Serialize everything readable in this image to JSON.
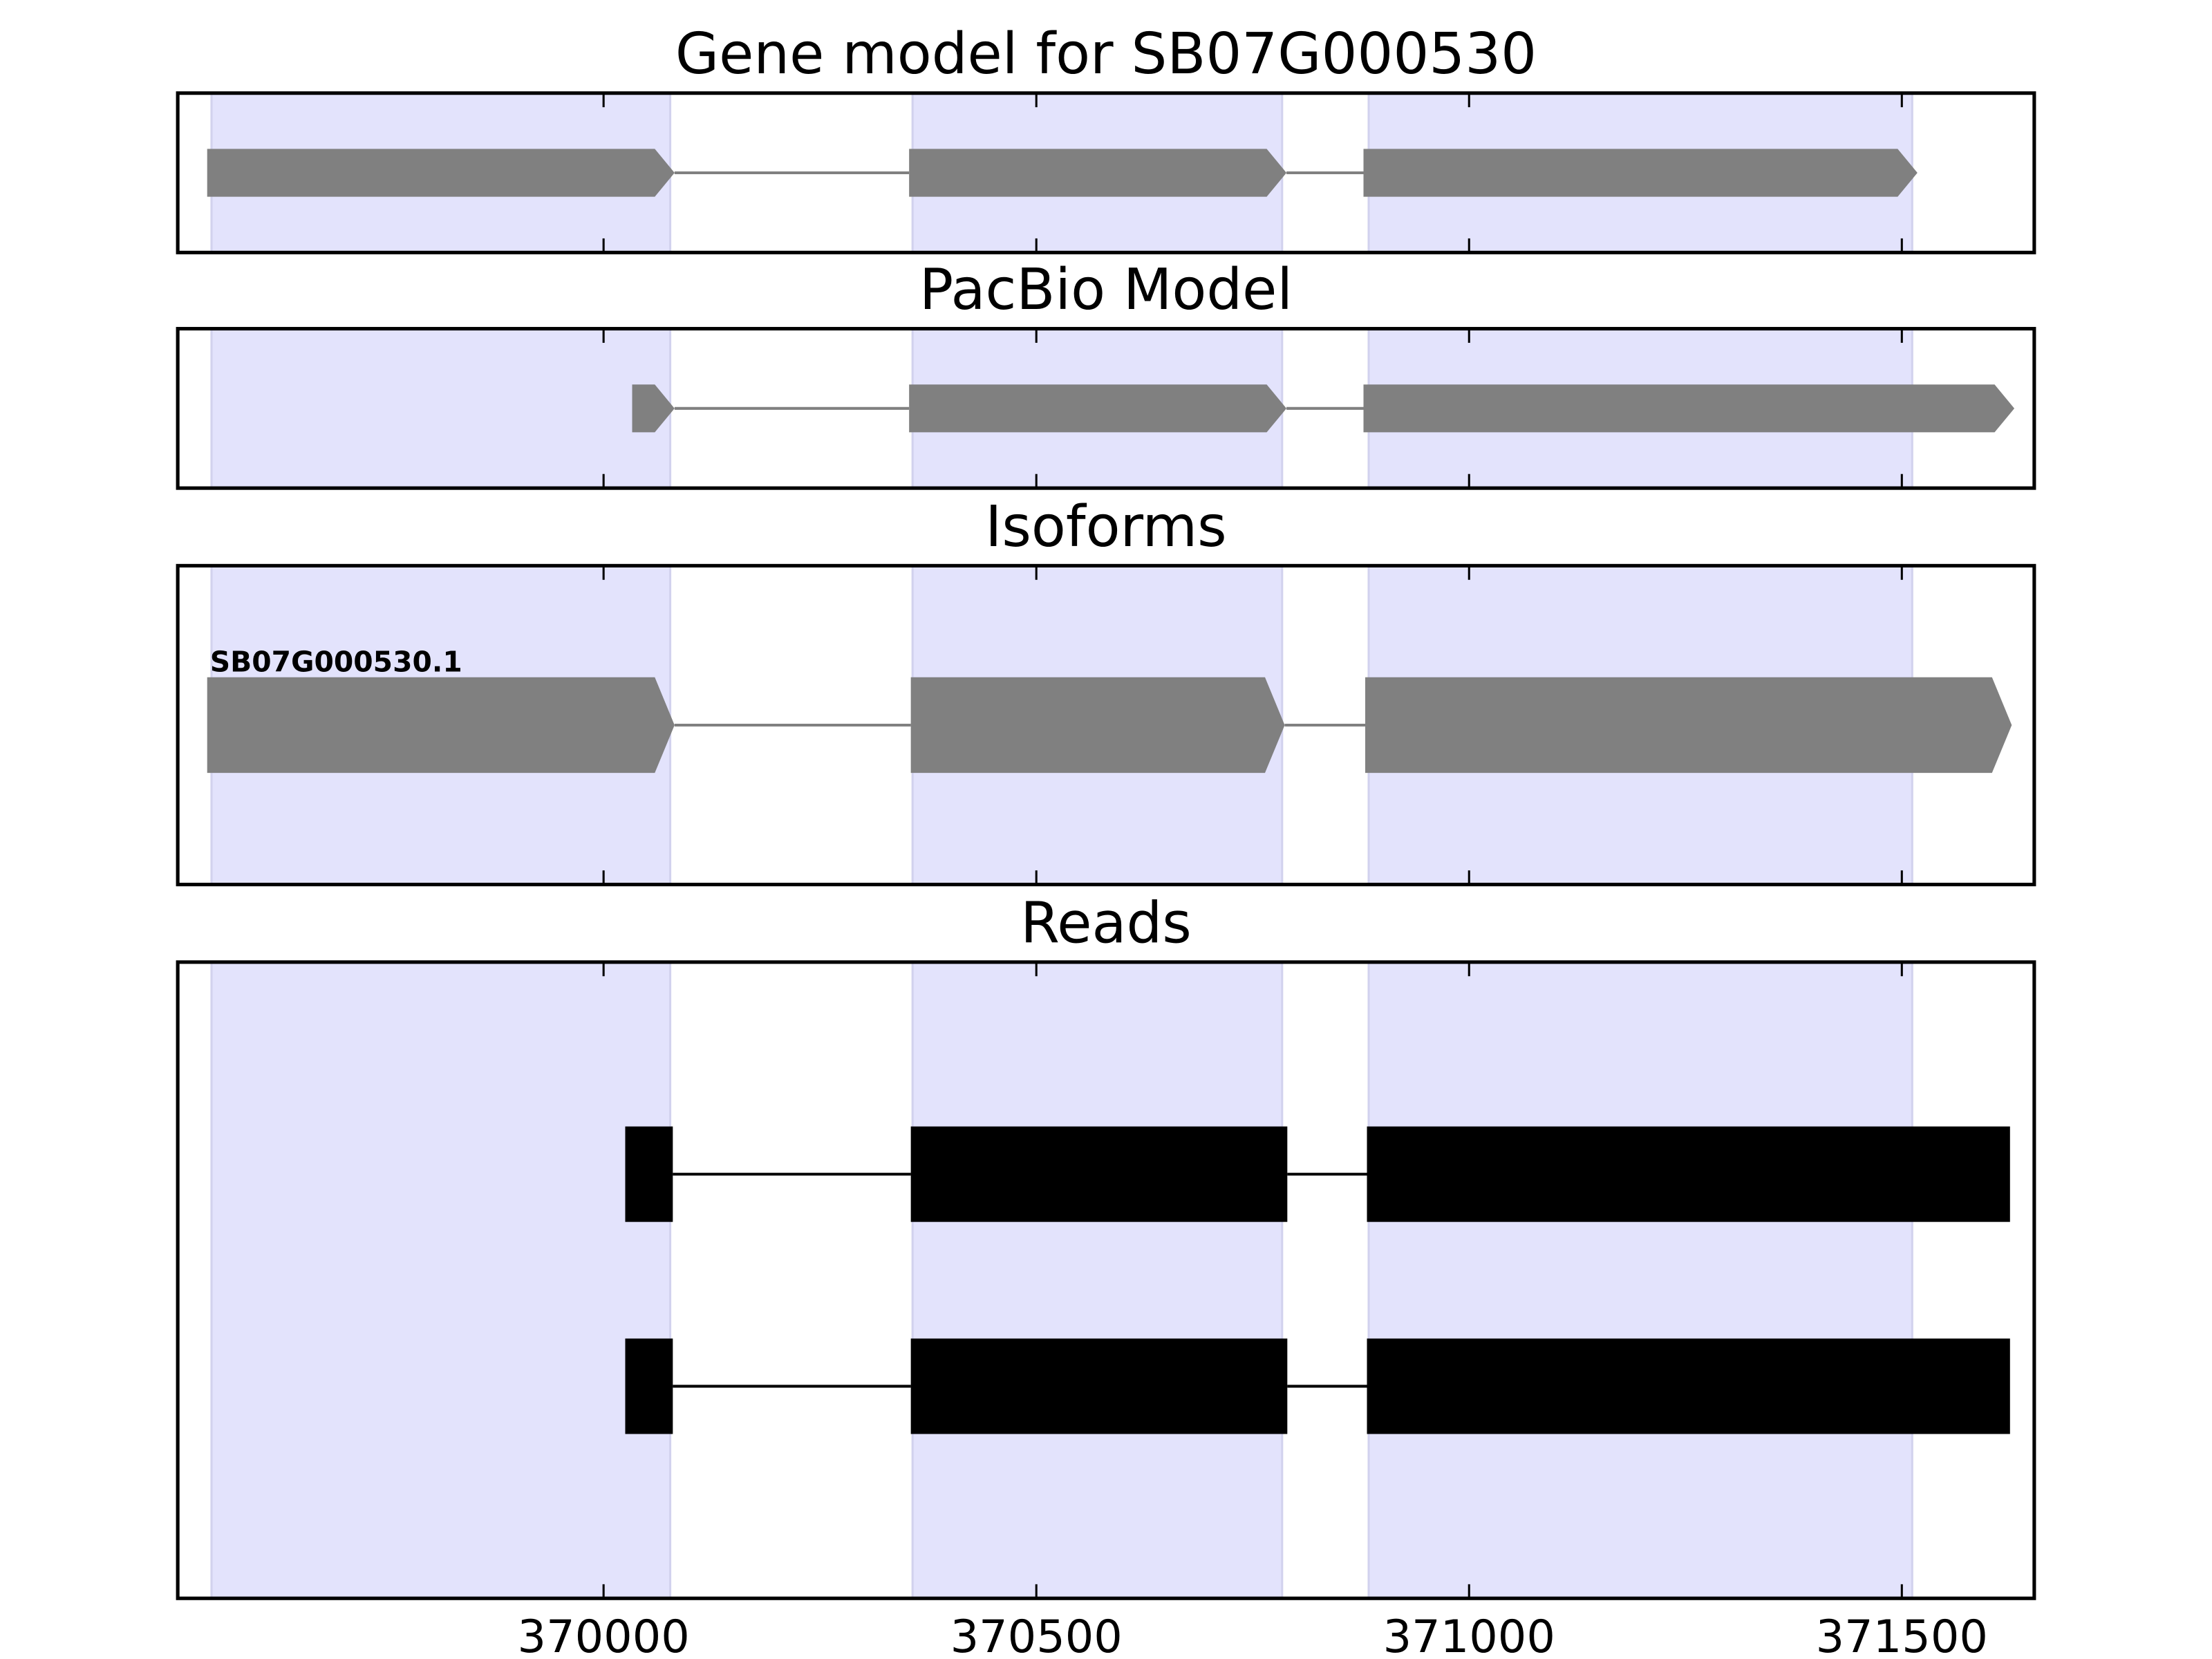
{
  "chart_data": [
    {
      "type": "gene-track",
      "title": "Gene model for SB07G000530",
      "xlim": [
        369508,
        371653
      ],
      "xticks": [
        370000,
        370500,
        371000,
        371500
      ],
      "highlights": [
        [
          369547,
          370077
        ],
        [
          370357,
          370784
        ],
        [
          370884,
          371512
        ]
      ],
      "highlight_color": "#e3e3fc",
      "color": "#808080",
      "arrows": true,
      "series": [
        {
          "exons": [
            [
              369542,
              370082
            ],
            [
              370353,
              370789
            ],
            [
              370878,
              371518
            ]
          ]
        }
      ]
    },
    {
      "type": "gene-track",
      "title": "PacBio Model",
      "xlim": [
        369508,
        371653
      ],
      "xticks": [
        370000,
        370500,
        371000,
        371500
      ],
      "highlights": [
        [
          369547,
          370077
        ],
        [
          370357,
          370784
        ],
        [
          370884,
          371512
        ]
      ],
      "highlight_color": "#e3e3fc",
      "color": "#808080",
      "arrows": true,
      "series": [
        {
          "exons": [
            [
              370033,
              370082
            ],
            [
              370353,
              370789
            ],
            [
              370878,
              371630
            ]
          ]
        }
      ]
    },
    {
      "type": "gene-track",
      "title": "Isoforms",
      "xlim": [
        369508,
        371653
      ],
      "xticks": [
        370000,
        370500,
        371000,
        371500
      ],
      "highlights": [
        [
          369547,
          370077
        ],
        [
          370357,
          370784
        ],
        [
          370884,
          371512
        ]
      ],
      "highlight_color": "#e3e3fc",
      "color": "#808080",
      "arrows": true,
      "series": [
        {
          "name": "SB07G000530.1",
          "exons": [
            [
              369542,
              370082
            ],
            [
              370355,
              370787
            ],
            [
              370880,
              371627
            ]
          ]
        }
      ]
    },
    {
      "type": "gene-track",
      "title": "Reads",
      "xlim": [
        369508,
        371653
      ],
      "xticks": [
        370000,
        370500,
        371000,
        371500
      ],
      "tick_labels": true,
      "highlights": [
        [
          369547,
          370077
        ],
        [
          370357,
          370784
        ],
        [
          370884,
          371512
        ]
      ],
      "highlight_color": "#e3e3fc",
      "color": "#000000",
      "arrows": false,
      "series": [
        {
          "exons": [
            [
              370025,
              370080
            ],
            [
              370355,
              370790
            ],
            [
              370882,
              371625
            ]
          ]
        },
        {
          "exons": [
            [
              370025,
              370080
            ],
            [
              370355,
              370790
            ],
            [
              370882,
              371625
            ]
          ]
        }
      ]
    }
  ]
}
